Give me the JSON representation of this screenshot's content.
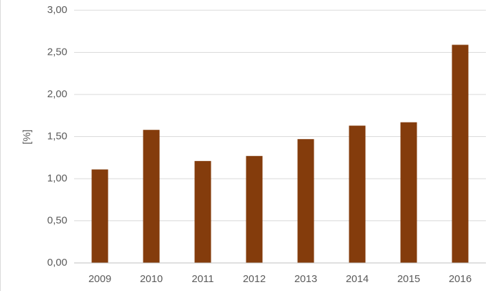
{
  "chart_data": {
    "type": "bar",
    "y_label": "[%]",
    "categories": [
      "2009",
      "2010",
      "2011",
      "2012",
      "2013",
      "2014",
      "2015",
      "2016"
    ],
    "values": [
      1.11,
      1.58,
      1.21,
      1.27,
      1.47,
      1.63,
      1.67,
      2.59
    ],
    "color": "#843c0c",
    "ylim": [
      0,
      3
    ],
    "yticks": [
      {
        "value": 0,
        "label": "0,00"
      },
      {
        "value": 0.5,
        "label": "0,50"
      },
      {
        "value": 1,
        "label": "1,00"
      },
      {
        "value": 1.5,
        "label": "1,50"
      },
      {
        "value": 2,
        "label": "2,00"
      },
      {
        "value": 2.5,
        "label": "2,50"
      },
      {
        "value": 3,
        "label": "3,00"
      }
    ],
    "grid": true
  }
}
